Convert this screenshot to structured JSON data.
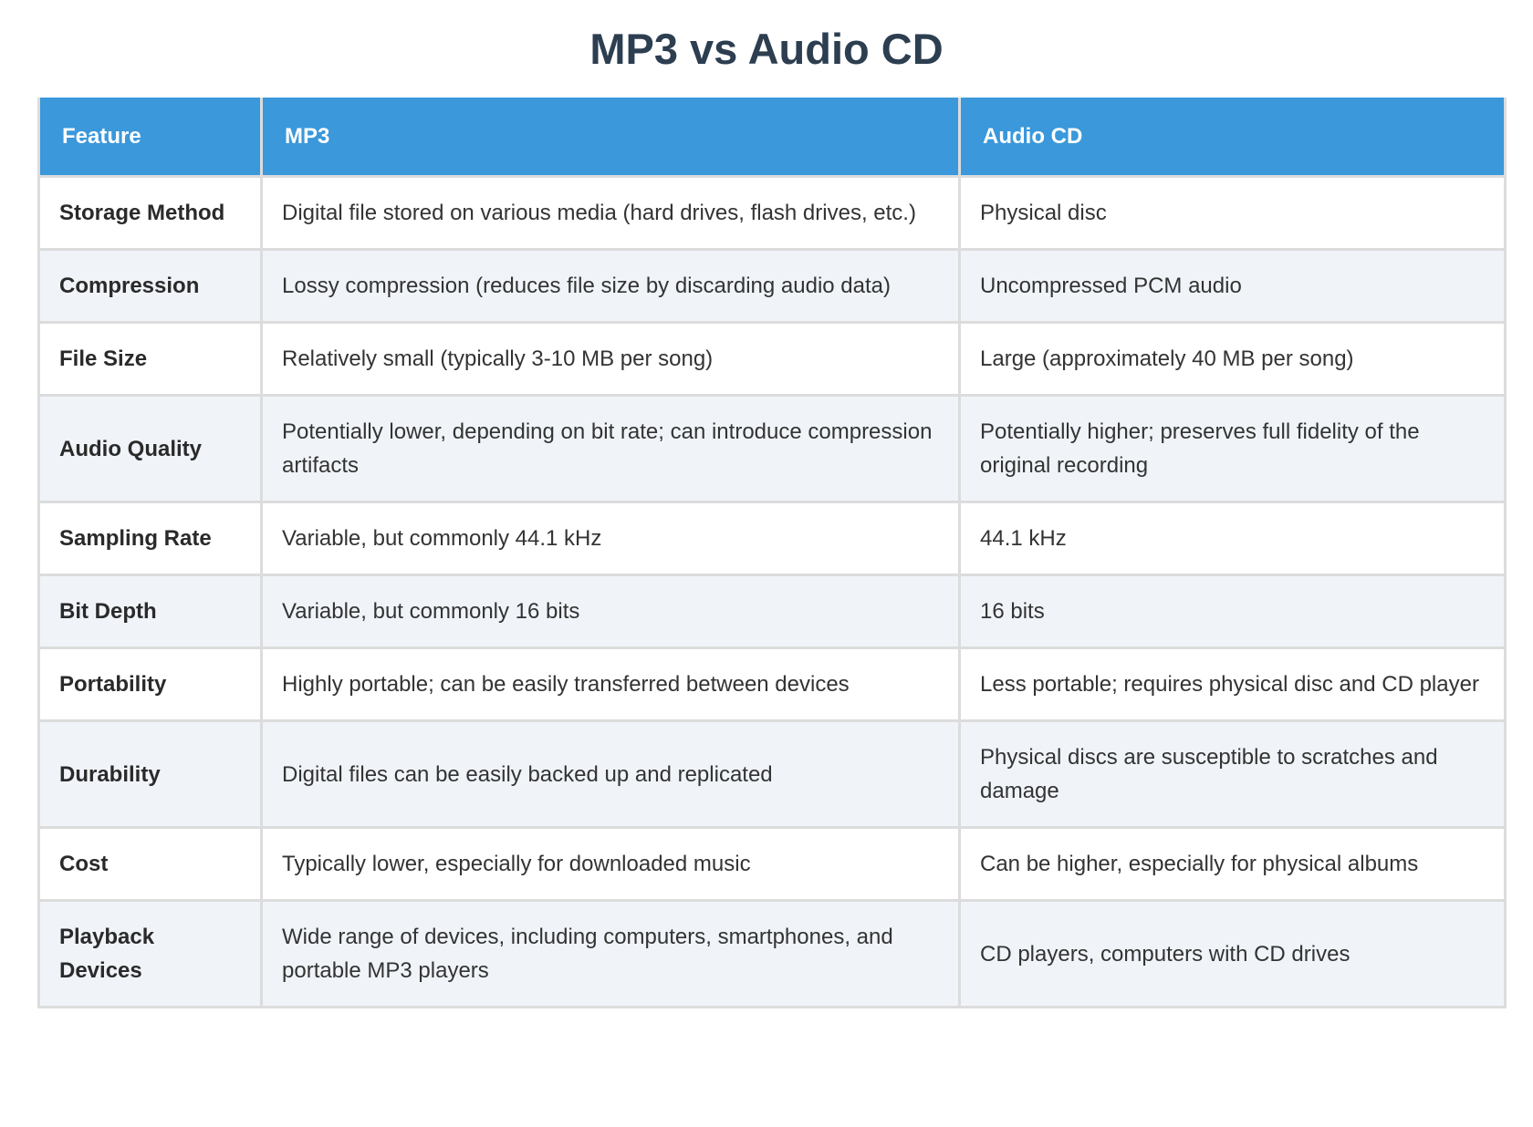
{
  "title": "MP3 vs Audio CD",
  "table": {
    "header": [
      "Feature",
      "MP3",
      "Audio CD"
    ],
    "rows": [
      [
        "Storage Method",
        "Digital file stored on various media (hard drives, flash drives, etc.)",
        "Physical disc"
      ],
      [
        "Compression",
        "Lossy compression (reduces file size by discarding audio data)",
        "Uncompressed PCM audio"
      ],
      [
        "File Size",
        "Relatively small (typically 3-10 MB per song)",
        "Large (approximately 40 MB per song)"
      ],
      [
        "Audio Quality",
        "Potentially lower, depending on bit rate; can introduce compression artifacts",
        "Potentially higher; preserves full fidelity of the original recording"
      ],
      [
        "Sampling Rate",
        "Variable, but commonly 44.1 kHz",
        "44.1 kHz"
      ],
      [
        "Bit Depth",
        "Variable, but commonly 16 bits",
        "16 bits"
      ],
      [
        "Portability",
        "Highly portable; can be easily transferred between devices",
        "Less portable; requires physical disc and CD player"
      ],
      [
        "Durability",
        "Digital files can be easily backed up and replicated",
        "Physical discs are susceptible to scratches and damage"
      ],
      [
        "Cost",
        "Typically lower, especially for downloaded music",
        "Can be higher, especially for physical albums"
      ],
      [
        "Playback Devices",
        "Wide range of devices, including computers, smartphones, and portable MP3 players",
        "CD players, computers with CD drives"
      ]
    ]
  }
}
